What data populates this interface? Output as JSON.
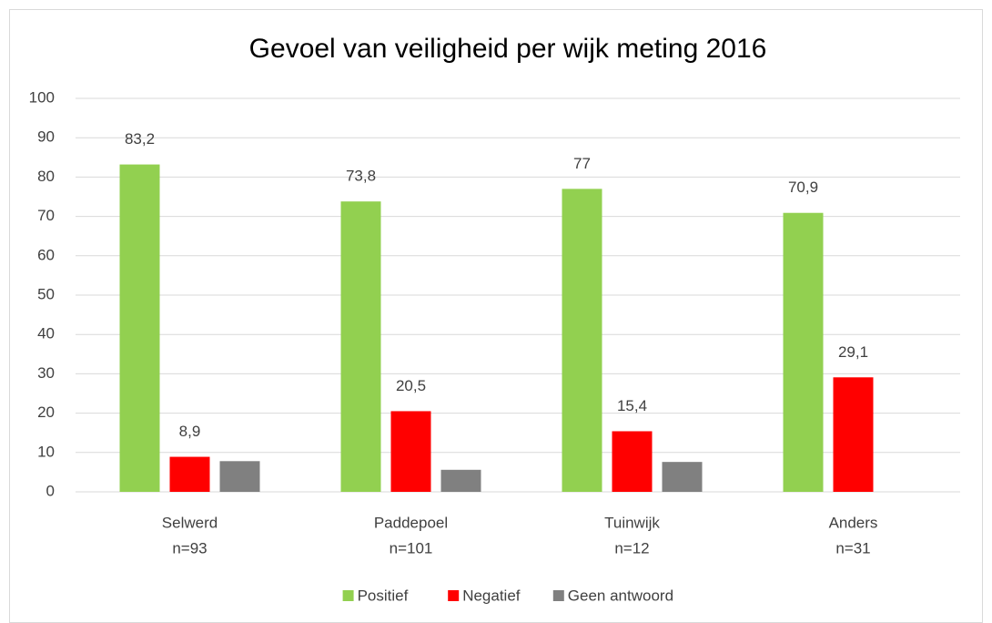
{
  "chart_data": {
    "type": "bar",
    "title": "Gevoel van veiligheid per wijk meting 2016",
    "categories": [
      [
        "Selwerd",
        "n=93"
      ],
      [
        "Paddepoel",
        "n=101"
      ],
      [
        "Tuinwijk",
        "n=12"
      ],
      [
        "Anders",
        "n=31"
      ]
    ],
    "series": [
      {
        "name": "Positief",
        "color": "#92d050",
        "values": [
          83.2,
          73.8,
          77,
          70.9
        ],
        "value_labels": [
          "83,2",
          "73,8",
          "77",
          "70,9"
        ]
      },
      {
        "name": "Negatief",
        "color": "#ff0000",
        "values": [
          8.9,
          20.5,
          15.4,
          29.1
        ],
        "value_labels": [
          "8,9",
          "20,5",
          "15,4",
          "29,1"
        ]
      },
      {
        "name": "Geen antwoord",
        "color": "#808080",
        "values": [
          7.8,
          5.6,
          7.6,
          0
        ]
      }
    ],
    "ylim": [
      0,
      100
    ],
    "yticks": [
      0,
      10,
      20,
      30,
      40,
      50,
      60,
      70,
      80,
      90,
      100
    ],
    "grid": true,
    "legend": "bottom"
  }
}
